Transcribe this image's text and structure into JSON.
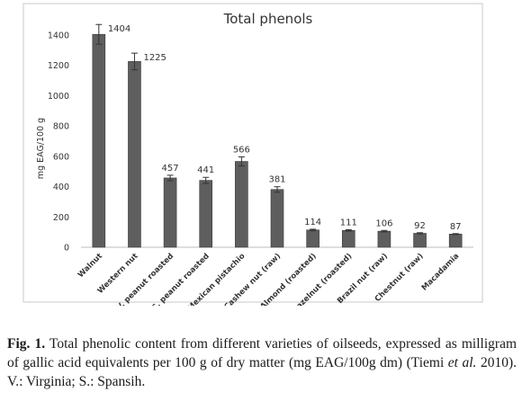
{
  "chart_data": {
    "type": "bar",
    "title": "Total phenols",
    "xlabel": "",
    "ylabel": "mg EAG/100 g",
    "ylim": [
      0,
      1500
    ],
    "yticks": [
      0,
      200,
      400,
      600,
      800,
      1000,
      1200,
      1400
    ],
    "grid": false,
    "categories": [
      "Walnut",
      "Western nut",
      "V. peanut roasted",
      "S. peanut roasted",
      "Mexican pistachio",
      "Cashew nut (raw)",
      "Almond (roasted)",
      "Hazelnut (roasted)",
      "Brazil nut (raw)",
      "Chestnut (raw)",
      "Macadamia"
    ],
    "values": [
      1404,
      1225,
      457,
      441,
      566,
      381,
      114,
      111,
      106,
      92,
      87
    ],
    "errors": [
      65,
      55,
      18,
      20,
      30,
      18,
      5,
      5,
      5,
      4,
      3
    ],
    "data_labels": [
      "1404",
      "1225",
      "457",
      "441",
      "566",
      "381",
      "114",
      "111",
      "106",
      "92",
      "87"
    ],
    "bar_color": "#5e5e5e"
  },
  "caption": {
    "label": "Fig. 1.",
    "part1": " Total phenolic content from different varieties of oilseeds, expressed as milligram of gallic acid equivalents per 100 g of dry matter (mg EAG/100g dm) (Tiemi ",
    "italic": "et al.",
    "part2": " 2010). V.: Virginia; S.: Spansih."
  }
}
